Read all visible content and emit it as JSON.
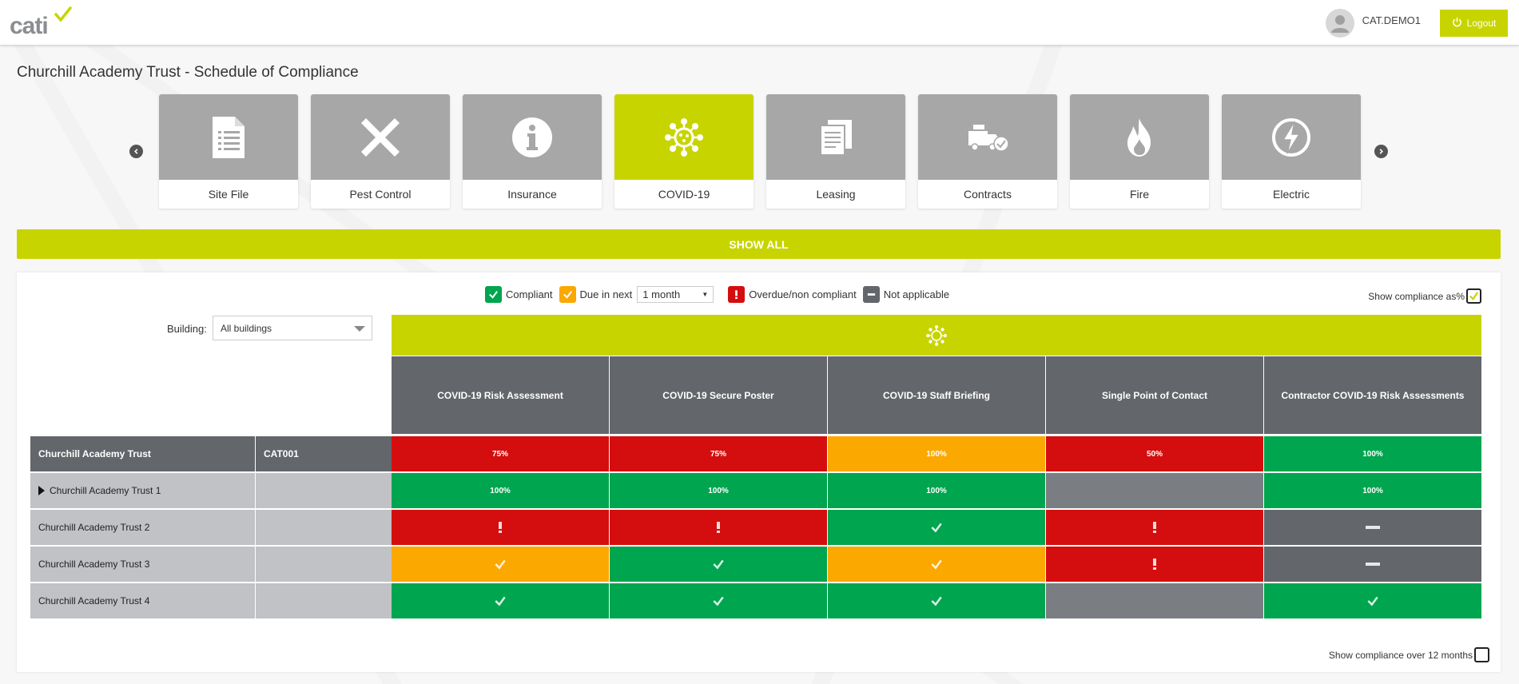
{
  "header": {
    "logo_text": "cati",
    "username": "CAT.DEMO1",
    "logout_label": "Logout"
  },
  "page": {
    "title": "Churchill Academy Trust - Schedule of Compliance"
  },
  "categories": [
    {
      "label": "Site File",
      "icon": "document-list-icon",
      "active": false
    },
    {
      "label": "Pest Control",
      "icon": "x-mark-icon",
      "active": false
    },
    {
      "label": "Insurance",
      "icon": "info-icon",
      "active": false
    },
    {
      "label": "COVID-19",
      "icon": "virus-icon",
      "active": true
    },
    {
      "label": "Leasing",
      "icon": "documents-icon",
      "active": false
    },
    {
      "label": "Contracts",
      "icon": "contract-truck-icon",
      "active": false
    },
    {
      "label": "Fire",
      "icon": "fire-icon",
      "active": false
    },
    {
      "label": "Electric",
      "icon": "lightning-icon",
      "active": false
    }
  ],
  "show_all_label": "SHOW ALL",
  "legend": {
    "compliant": "Compliant",
    "due_in_next": "Due in next",
    "period_value": "1 month",
    "overdue": "Overdue/non compliant",
    "not_applicable": "Not applicable"
  },
  "show_pct_label": "Show compliance as%",
  "building": {
    "label": "Building:",
    "value": "All buildings"
  },
  "columns": [
    "COVID-19 Risk Assessment",
    "COVID-19 Secure Poster",
    "COVID-19 Staff Briefing",
    "Single Point of Contact",
    "Contractor COVID-19 Risk Assessments"
  ],
  "rows": [
    {
      "name": "Churchill Academy Trust",
      "code": "CAT001",
      "expand": false,
      "top": true,
      "cells": [
        {
          "status": "red",
          "text": "75%"
        },
        {
          "status": "red",
          "text": "75%"
        },
        {
          "status": "amber",
          "text": "100%"
        },
        {
          "status": "red",
          "text": "50%"
        },
        {
          "status": "green",
          "text": "100%"
        }
      ]
    },
    {
      "name": "Churchill Academy Trust 1",
      "code": "",
      "expand": true,
      "top": false,
      "cells": [
        {
          "status": "green",
          "text": "100%"
        },
        {
          "status": "green",
          "text": "100%"
        },
        {
          "status": "green",
          "text": "100%"
        },
        {
          "status": "grey",
          "text": ""
        },
        {
          "status": "green",
          "text": "100%"
        }
      ]
    },
    {
      "name": "Churchill Academy Trust 2",
      "code": "",
      "expand": false,
      "top": false,
      "cells": [
        {
          "status": "red",
          "icon": "exclamation-icon"
        },
        {
          "status": "red",
          "icon": "exclamation-icon"
        },
        {
          "status": "green",
          "icon": "check-icon"
        },
        {
          "status": "red",
          "icon": "exclamation-icon"
        },
        {
          "status": "darkgrey",
          "icon": "dash-icon"
        }
      ]
    },
    {
      "name": "Churchill Academy Trust 3",
      "code": "",
      "expand": false,
      "top": false,
      "cells": [
        {
          "status": "amber",
          "icon": "check-icon"
        },
        {
          "status": "green",
          "icon": "check-icon"
        },
        {
          "status": "amber",
          "icon": "check-icon"
        },
        {
          "status": "red",
          "icon": "exclamation-icon"
        },
        {
          "status": "darkgrey",
          "icon": "dash-icon"
        }
      ]
    },
    {
      "name": "Churchill Academy Trust 4",
      "code": "",
      "expand": false,
      "top": false,
      "cells": [
        {
          "status": "green",
          "icon": "check-icon"
        },
        {
          "status": "green",
          "icon": "check-icon"
        },
        {
          "status": "green",
          "icon": "check-icon"
        },
        {
          "status": "grey",
          "text": ""
        },
        {
          "status": "green",
          "icon": "check-icon"
        }
      ]
    }
  ],
  "show_12_label": "Show compliance over 12 months",
  "colors": {
    "brand": "#c8d400",
    "compliant": "#00a54f",
    "due": "#fba801",
    "overdue": "#d40e0e",
    "not_applicable": "#63666a"
  }
}
